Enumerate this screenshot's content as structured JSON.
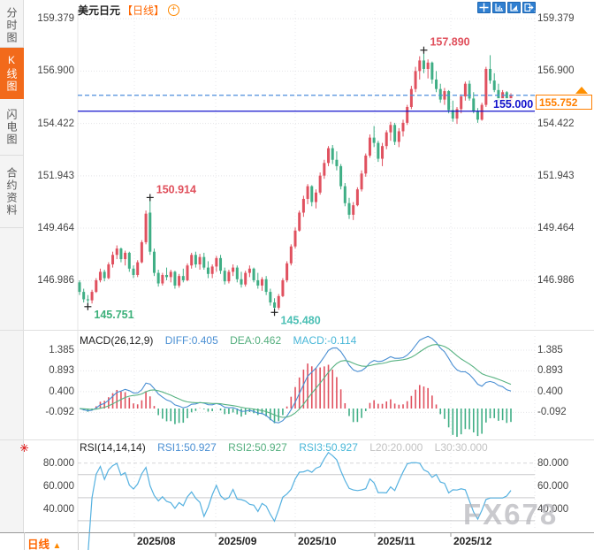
{
  "sidebar": {
    "items": [
      {
        "label": "分时图",
        "active": false
      },
      {
        "label": "K线图",
        "active": true
      },
      {
        "label": "闪电图",
        "active": false
      },
      {
        "label": "合约资料",
        "active": false
      }
    ]
  },
  "header": {
    "symbol": "美元日元",
    "period_tag": "【日线】",
    "toolbar_icons": [
      "crosshair",
      "zoom-axes",
      "pan-axes",
      "export"
    ]
  },
  "price_line": {
    "current": {
      "label": "155.752",
      "value": 155.752
    },
    "support": {
      "label": "155.000",
      "value": 155.0
    }
  },
  "footer": {
    "period_label": "日线",
    "arrow": "▲",
    "x_labels": [
      "2025/08",
      "2025/09",
      "2025/10",
      "2025/11",
      "2025/12"
    ]
  },
  "watermark": "FX678",
  "colors": {
    "up": "#e0515f",
    "down": "#3fae85",
    "diff_line": "#4a8fd3",
    "dea_line": "#57b281",
    "rsi_line": "#55b1e0",
    "dashed_line": "#4d8fdc",
    "blue_line": "#1212cc",
    "accent": "#ff6600",
    "toolbar": "#2f7fd1",
    "ann_red": "#e0505c",
    "ann_green": "#3cb07a",
    "ann_teal": "#4cc0b5"
  },
  "chart_data": [
    {
      "type": "candlestick",
      "title": "美元日元 日线",
      "ylim": [
        144.78,
        159.76
      ],
      "y_ticks": [
        159.379,
        156.9,
        154.422,
        151.943,
        149.464,
        146.986
      ],
      "x_labels": [
        "2025/08",
        "2025/09",
        "2025/10",
        "2025/11",
        "2025/12"
      ],
      "levels": [
        {
          "value": 155.752,
          "style": "dashed",
          "label": "155.752"
        },
        {
          "value": 155.0,
          "style": "solid",
          "label": "155.000"
        }
      ],
      "annotations": [
        {
          "text": "145.751",
          "index": 2,
          "price": 145.751,
          "color": "ann_green",
          "placement": "below"
        },
        {
          "text": "150.914",
          "index": 17,
          "price": 150.914,
          "color": "ann_red",
          "placement": "above"
        },
        {
          "text": "145.480",
          "index": 47,
          "price": 145.48,
          "color": "ann_teal",
          "placement": "below"
        },
        {
          "text": "157.890",
          "index": 83,
          "price": 157.89,
          "color": "ann_red",
          "placement": "above"
        }
      ],
      "candles": [
        [
          146.9,
          147.0,
          146.3,
          146.45
        ],
        [
          146.45,
          146.6,
          145.95,
          146.1
        ],
        [
          146.1,
          146.3,
          145.751,
          146.05
        ],
        [
          146.05,
          146.55,
          145.9,
          146.45
        ],
        [
          146.45,
          147.1,
          146.4,
          147.0
        ],
        [
          147.0,
          147.55,
          146.9,
          147.4
        ],
        [
          147.4,
          147.5,
          146.95,
          147.1
        ],
        [
          147.1,
          147.85,
          147.05,
          147.75
        ],
        [
          147.75,
          148.35,
          147.6,
          148.2
        ],
        [
          148.2,
          148.65,
          148.0,
          148.5
        ],
        [
          148.5,
          148.55,
          147.85,
          148.0
        ],
        [
          148.0,
          148.4,
          147.7,
          148.3
        ],
        [
          148.3,
          148.35,
          147.4,
          147.55
        ],
        [
          147.55,
          147.7,
          147.1,
          147.25
        ],
        [
          147.25,
          147.95,
          147.15,
          147.85
        ],
        [
          147.85,
          148.9,
          147.8,
          148.8
        ],
        [
          148.8,
          150.3,
          148.7,
          150.15
        ],
        [
          150.2,
          150.914,
          148.2,
          148.35
        ],
        [
          148.35,
          148.5,
          147.2,
          147.35
        ],
        [
          147.35,
          147.5,
          146.7,
          146.85
        ],
        [
          146.85,
          147.35,
          146.75,
          147.25
        ],
        [
          147.25,
          147.6,
          147.0,
          147.15
        ],
        [
          147.15,
          147.5,
          146.9,
          147.4
        ],
        [
          147.4,
          147.45,
          146.6,
          146.75
        ],
        [
          146.75,
          147.3,
          146.65,
          147.2
        ],
        [
          147.2,
          147.55,
          146.9,
          147.0
        ],
        [
          147.0,
          147.8,
          146.95,
          147.7
        ],
        [
          147.7,
          148.3,
          147.55,
          148.2
        ],
        [
          148.2,
          148.35,
          147.6,
          147.75
        ],
        [
          147.75,
          148.25,
          147.5,
          148.1
        ],
        [
          148.1,
          148.3,
          147.5,
          147.6
        ],
        [
          147.6,
          147.9,
          147.1,
          147.3
        ],
        [
          147.3,
          147.75,
          147.1,
          147.65
        ],
        [
          147.65,
          148.15,
          147.4,
          148.05
        ],
        [
          148.05,
          148.2,
          147.3,
          147.45
        ],
        [
          147.45,
          147.6,
          146.8,
          146.95
        ],
        [
          146.95,
          147.5,
          146.85,
          147.4
        ],
        [
          147.4,
          147.75,
          147.2,
          147.6
        ],
        [
          147.6,
          147.7,
          146.9,
          147.05
        ],
        [
          147.05,
          147.4,
          146.65,
          146.8
        ],
        [
          146.8,
          147.45,
          146.7,
          147.35
        ],
        [
          147.35,
          147.7,
          147.15,
          147.55
        ],
        [
          147.55,
          147.6,
          146.9,
          147.0
        ],
        [
          147.0,
          147.35,
          146.6,
          146.75
        ],
        [
          146.75,
          147.15,
          146.5,
          147.05
        ],
        [
          147.05,
          147.2,
          146.3,
          146.45
        ],
        [
          146.45,
          146.6,
          145.8,
          145.95
        ],
        [
          145.95,
          146.15,
          145.48,
          145.7
        ],
        [
          145.7,
          146.35,
          145.6,
          146.25
        ],
        [
          146.25,
          147.1,
          146.2,
          147.0
        ],
        [
          147.0,
          147.9,
          146.9,
          147.8
        ],
        [
          147.8,
          148.7,
          147.7,
          148.6
        ],
        [
          148.6,
          149.5,
          148.5,
          149.35
        ],
        [
          149.35,
          150.3,
          149.3,
          150.2
        ],
        [
          150.2,
          151.0,
          150.0,
          150.85
        ],
        [
          150.85,
          151.55,
          150.6,
          151.45
        ],
        [
          151.45,
          151.5,
          150.5,
          150.7
        ],
        [
          150.7,
          151.3,
          150.4,
          151.15
        ],
        [
          151.15,
          152.1,
          151.05,
          151.95
        ],
        [
          151.95,
          152.7,
          151.8,
          152.55
        ],
        [
          152.55,
          153.35,
          152.4,
          153.25
        ],
        [
          153.25,
          153.4,
          152.5,
          152.7
        ],
        [
          152.7,
          153.1,
          152.2,
          152.4
        ],
        [
          152.4,
          152.5,
          151.3,
          151.45
        ],
        [
          151.45,
          151.6,
          150.5,
          150.65
        ],
        [
          150.65,
          150.9,
          149.9,
          150.1
        ],
        [
          150.1,
          150.7,
          149.85,
          150.55
        ],
        [
          150.55,
          151.4,
          150.5,
          151.3
        ],
        [
          151.3,
          152.2,
          151.2,
          152.05
        ],
        [
          152.05,
          153.0,
          151.9,
          152.9
        ],
        [
          152.9,
          153.9,
          152.8,
          153.75
        ],
        [
          153.75,
          154.3,
          153.3,
          153.5
        ],
        [
          153.5,
          153.6,
          152.6,
          152.75
        ],
        [
          152.75,
          153.5,
          152.4,
          153.35
        ],
        [
          153.35,
          154.1,
          153.2,
          154.0
        ],
        [
          154.0,
          154.5,
          153.6,
          154.35
        ],
        [
          154.35,
          154.45,
          153.4,
          153.55
        ],
        [
          153.55,
          154.2,
          153.3,
          154.05
        ],
        [
          154.05,
          154.6,
          153.8,
          154.45
        ],
        [
          154.45,
          155.3,
          154.35,
          155.2
        ],
        [
          155.2,
          156.2,
          155.1,
          156.05
        ],
        [
          156.05,
          157.1,
          155.9,
          156.9
        ],
        [
          156.9,
          157.6,
          156.5,
          157.4
        ],
        [
          157.4,
          157.89,
          156.8,
          157.0
        ],
        [
          157.0,
          157.45,
          156.55,
          157.3
        ],
        [
          157.3,
          157.35,
          156.3,
          156.5
        ],
        [
          156.5,
          156.9,
          155.9,
          156.05
        ],
        [
          156.05,
          156.3,
          155.4,
          155.55
        ],
        [
          155.55,
          156.1,
          155.3,
          155.95
        ],
        [
          155.95,
          156.0,
          154.9,
          155.05
        ],
        [
          155.05,
          155.5,
          154.5,
          154.65
        ],
        [
          154.65,
          155.2,
          154.4,
          155.1
        ],
        [
          155.1,
          155.8,
          154.9,
          155.7
        ],
        [
          155.7,
          156.4,
          155.5,
          156.3
        ],
        [
          156.3,
          156.45,
          155.5,
          155.6
        ],
        [
          155.6,
          155.9,
          154.9,
          155.0
        ],
        [
          155.0,
          155.15,
          154.45,
          154.6
        ],
        [
          154.6,
          155.4,
          154.55,
          155.3
        ],
        [
          155.3,
          157.1,
          155.2,
          157.0
        ],
        [
          157.0,
          157.65,
          156.3,
          156.45
        ],
        [
          156.45,
          156.8,
          155.9,
          156.0
        ],
        [
          156.0,
          156.3,
          155.4,
          155.5
        ],
        [
          155.5,
          156.0,
          155.3,
          155.9
        ],
        [
          155.9,
          155.95,
          155.2,
          155.3
        ],
        [
          155.3,
          155.85,
          155.25,
          155.752
        ]
      ]
    },
    {
      "type": "macd",
      "params": "MACD(26,12,9)",
      "header": {
        "diff": "DIFF:0.405",
        "dea": "DEA:0.462",
        "macd": "MACD:-0.114"
      },
      "y_ticks": [
        1.385,
        0.893,
        0.4,
        -0.092
      ],
      "ylim": [
        -0.65,
        1.72
      ]
    },
    {
      "type": "rsi",
      "params": "RSI(14,14,14)",
      "header": {
        "rsi1": "RSI1:50.927",
        "rsi2": "RSI2:50.927",
        "rsi3": "RSI3:50.927",
        "l20": "L20:20.000",
        "l30": "L30:30.000"
      },
      "y_ticks": [
        80.0,
        60.0,
        40.0
      ],
      "ylim": [
        23,
        89
      ],
      "levels": [
        70,
        50,
        30
      ]
    }
  ]
}
